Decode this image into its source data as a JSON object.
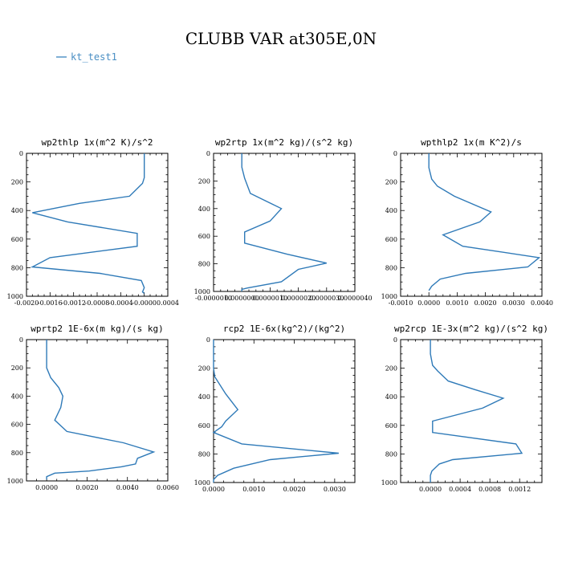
{
  "title": "CLUBB VAR at305E,0N",
  "legend": {
    "entries": [
      {
        "label": "kt_test1",
        "color": "#2f7ab8"
      }
    ]
  },
  "chart_data": [
    {
      "type": "line",
      "title": "wp2thlp  1x(m^2 K)/s^2",
      "xlim": [
        -0.002,
        0.0004
      ],
      "ylim": [
        0,
        1000
      ],
      "y_inverted": true,
      "xticks": [
        -0.002,
        -0.0016,
        -0.0012,
        -0.0008,
        -0.0004,
        0.0,
        0.0004
      ],
      "xtick_labels": [
        "-0.0020",
        "-0.0016",
        "-0.0012",
        "-0.0008",
        "-0.0004",
        "-0.0000",
        "0.0004"
      ],
      "yticks": [
        0,
        200,
        400,
        600,
        800,
        1000
      ],
      "ytick_labels": [
        "0",
        "200",
        "400",
        "600",
        "800",
        "1000"
      ],
      "series": [
        {
          "name": "kt_test1",
          "x": [
            0.0,
            0.0,
            0.0,
            -3e-05,
            -0.00025,
            -0.0011,
            -0.0019,
            -0.0013,
            -0.00012,
            -0.00012,
            -0.0016,
            -0.0019,
            -0.00075,
            -5e-05,
            0.0,
            -3e-05,
            0.0
          ],
          "y": [
            0,
            100,
            170,
            210,
            300,
            350,
            415,
            480,
            560,
            650,
            730,
            795,
            840,
            890,
            940,
            970,
            980
          ]
        }
      ]
    },
    {
      "type": "line",
      "title": "wp2rtp  1x(m^2 kg)/(s^2 kg)",
      "xlim": [
        -1e-06,
        4e-06
      ],
      "ylim": [
        0,
        1000
      ],
      "y_inverted": true,
      "xticks": [
        -1e-06,
        0.0,
        1e-06,
        2e-06,
        3e-06,
        4e-06
      ],
      "xtick_labels": [
        "-0.0000010",
        "0.0000000",
        "0.0000010",
        "0.0000020",
        "0.0000030",
        "0.0000040"
      ],
      "yticks": [
        0,
        200,
        400,
        600,
        800,
        1000
      ],
      "ytick_labels": [
        "0",
        "200",
        "400",
        "600",
        "800",
        "1000"
      ],
      "series": [
        {
          "name": "kt_test1",
          "x": [
            0.0,
            0.0,
            1e-07,
            3e-07,
            1.4e-06,
            1e-06,
            1e-07,
            1e-07,
            1.6e-06,
            3e-06,
            2e-06,
            1.4e-06,
            2e-07,
            0.0,
            0.0
          ],
          "y": [
            0,
            100,
            180,
            290,
            400,
            490,
            570,
            650,
            730,
            795,
            840,
            930,
            975,
            985,
            1000
          ]
        }
      ]
    },
    {
      "type": "line",
      "title": "wpthlp2  1x(m K^2)/s",
      "xlim": [
        -0.001,
        0.004
      ],
      "ylim": [
        0,
        1000
      ],
      "y_inverted": true,
      "xticks": [
        -0.001,
        0.0,
        0.001,
        0.002,
        0.003,
        0.004
      ],
      "xtick_labels": [
        "-0.0010",
        "0.0000",
        "0.0010",
        "0.0020",
        "0.0030",
        "0.0040"
      ],
      "yticks": [
        0,
        200,
        400,
        600,
        800,
        1000
      ],
      "ytick_labels": [
        "0",
        "200",
        "400",
        "600",
        "800",
        "1000"
      ],
      "series": [
        {
          "name": "kt_test1",
          "x": [
            0.0,
            0.0,
            0.0001,
            0.0003,
            0.0009,
            0.0022,
            0.0018,
            0.0005,
            0.0012,
            0.0039,
            0.0035,
            0.0013,
            0.0004,
            0.0001,
            0.0
          ],
          "y": [
            0,
            100,
            180,
            230,
            300,
            410,
            480,
            570,
            650,
            730,
            795,
            840,
            880,
            930,
            960
          ]
        }
      ]
    },
    {
      "type": "line",
      "title": "wprtp2  1E-6x(m kg)/(s kg)",
      "xlim": [
        -0.001,
        0.006
      ],
      "ylim": [
        0,
        1000
      ],
      "y_inverted": true,
      "xticks": [
        0.0,
        0.002,
        0.004,
        0.006
      ],
      "xtick_labels": [
        "0.0000",
        "0.0020",
        "0.0040",
        "0.0060"
      ],
      "yticks": [
        0,
        200,
        400,
        600,
        800,
        1000
      ],
      "ytick_labels": [
        "0",
        "200",
        "400",
        "600",
        "800",
        "1000"
      ],
      "series": [
        {
          "name": "kt_test1",
          "x": [
            0.0,
            0.0,
            0.0,
            0.0002,
            0.0006,
            0.0008,
            0.0007,
            0.0004,
            0.001,
            0.0038,
            0.0053,
            0.0045,
            0.0044,
            0.0037,
            0.0021,
            0.0004,
            0.0,
            0.0
          ],
          "y": [
            0,
            100,
            200,
            270,
            340,
            400,
            480,
            570,
            650,
            730,
            795,
            840,
            880,
            900,
            930,
            945,
            970,
            990
          ]
        }
      ]
    },
    {
      "type": "line",
      "title": "rcp2  1E-6x(kg^2)/(kg^2)",
      "xlim": [
        0.0,
        0.0035
      ],
      "ylim": [
        0,
        1000
      ],
      "y_inverted": true,
      "xticks": [
        0.0,
        0.001,
        0.002,
        0.003
      ],
      "xtick_labels": [
        "0.0000",
        "0.0010",
        "0.0020",
        "0.0030"
      ],
      "yticks": [
        0,
        200,
        400,
        600,
        800,
        1000
      ],
      "ytick_labels": [
        "0",
        "200",
        "400",
        "600",
        "800",
        "1000"
      ],
      "series": [
        {
          "name": "kt_test1",
          "x": [
            0.0,
            0.0,
            3e-05,
            0.0003,
            0.0006,
            0.0003,
            0.0002,
            0.0,
            0.0007,
            0.0031,
            0.0014,
            0.0005,
            0.0001,
            0.0,
            0.0
          ],
          "y": [
            0,
            200,
            260,
            380,
            490,
            570,
            610,
            650,
            730,
            795,
            840,
            900,
            950,
            980,
            1000
          ]
        }
      ]
    },
    {
      "type": "line",
      "title": "wp2rcp  1E-3x(m^2 kg)/(s^2 kg)",
      "xlim": [
        -0.0004,
        0.0015
      ],
      "ylim": [
        0,
        1000
      ],
      "y_inverted": true,
      "xticks": [
        0.0,
        0.0004,
        0.0008,
        0.0012
      ],
      "xtick_labels": [
        "0.0000",
        "0.0004",
        "0.0008",
        "0.0012"
      ],
      "yticks": [
        0,
        200,
        400,
        600,
        800,
        1000
      ],
      "ytick_labels": [
        "0",
        "200",
        "400",
        "600",
        "800",
        "1000"
      ],
      "series": [
        {
          "name": "kt_test1",
          "x": [
            0.0,
            0.0,
            3e-05,
            0.0001,
            0.00024,
            0.0006,
            0.00098,
            0.0007,
            3e-05,
            3e-05,
            0.00115,
            0.00123,
            0.0003,
            0.00012,
            2e-05,
            0.0,
            0.0
          ],
          "y": [
            0,
            100,
            180,
            220,
            290,
            350,
            410,
            480,
            570,
            650,
            730,
            795,
            840,
            870,
            920,
            950,
            1000
          ]
        }
      ]
    }
  ]
}
